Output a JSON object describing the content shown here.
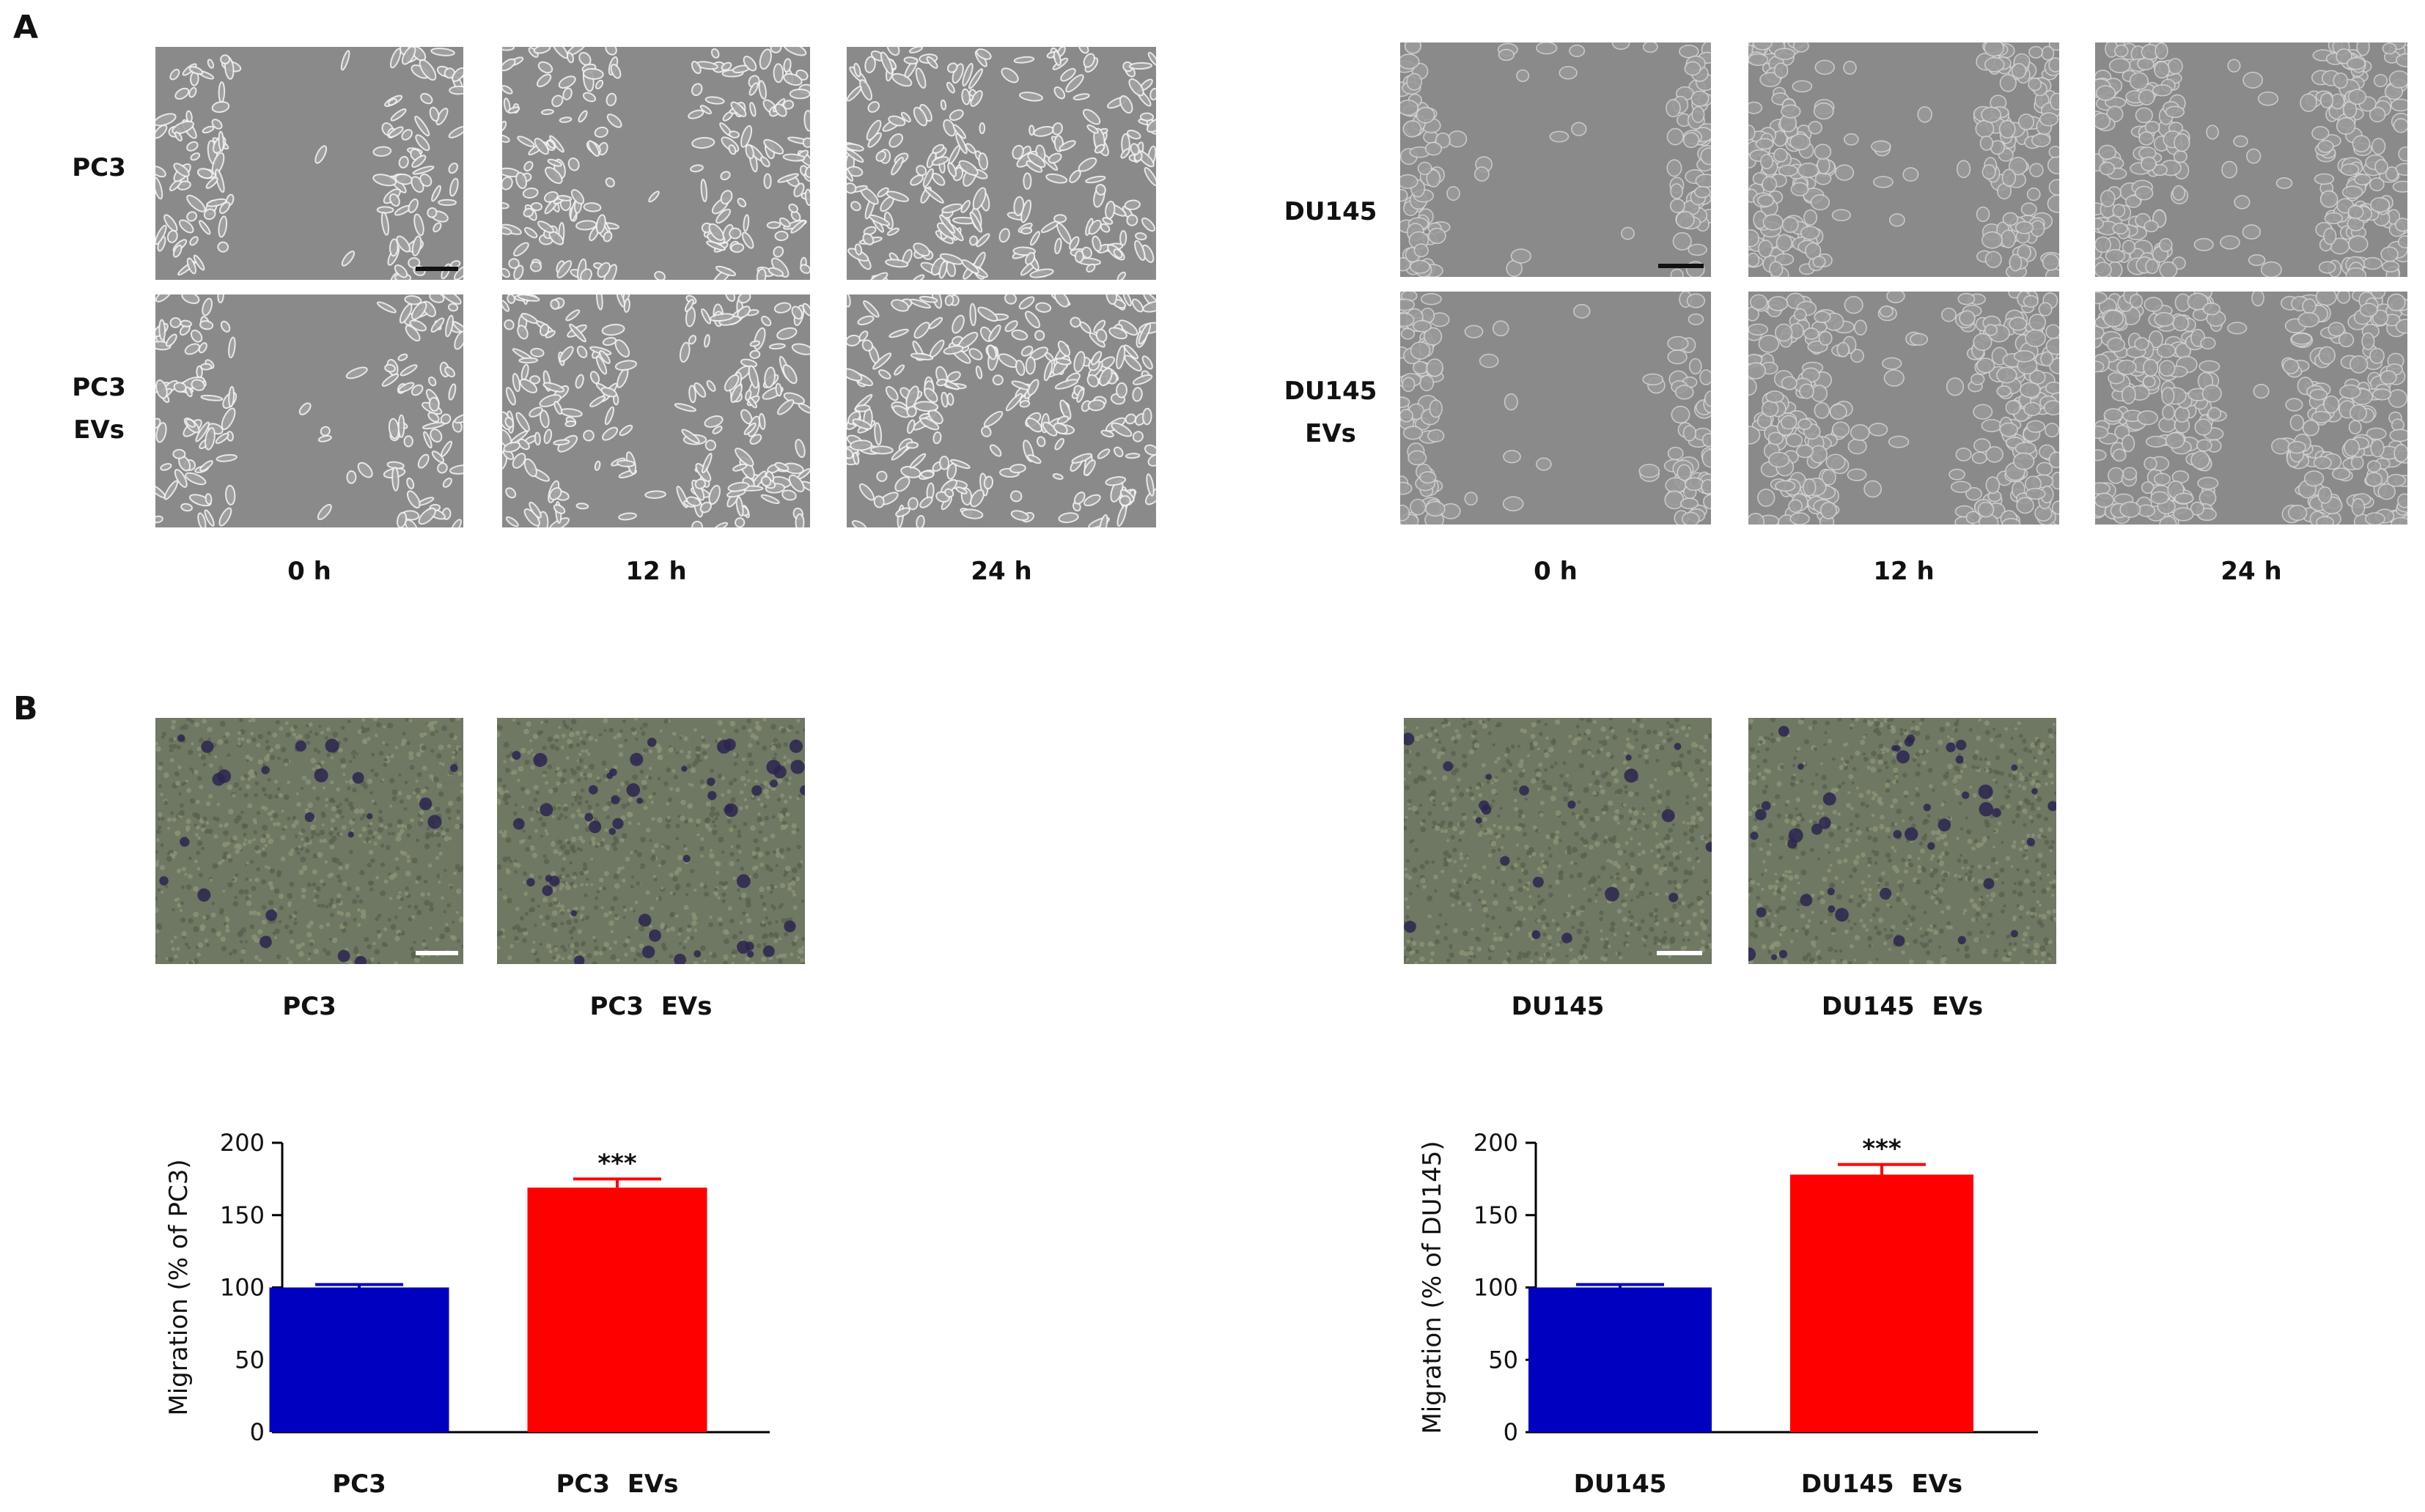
{
  "figure": {
    "panel_a_label": "A",
    "panel_b_label": "B",
    "wound_healing": {
      "pc3": {
        "row_labels": [
          "PC3",
          "PC3\nEVs"
        ],
        "time_labels": [
          "0 h",
          "12 h",
          "24 h"
        ]
      },
      "du145": {
        "row_labels": [
          "DU145",
          "DU145\nEVs"
        ],
        "time_labels": [
          "0 h",
          "12 h",
          "24 h"
        ]
      }
    },
    "transwell": {
      "pc3_labels": [
        "PC3",
        "PC3  EVs"
      ],
      "du145_labels": [
        "DU145",
        "DU145  EVs"
      ]
    }
  },
  "chart_data": [
    {
      "type": "bar",
      "title": "",
      "xlabel": "",
      "ylabel": "Migration  (% of PC3)",
      "categories": [
        "PC3",
        "PC3  EVs"
      ],
      "values": [
        100,
        169
      ],
      "errors": [
        2,
        6
      ],
      "significance": [
        "",
        "***"
      ],
      "colors": [
        "#0000c0",
        "#ff0000"
      ],
      "ylim": [
        0,
        200
      ],
      "yticks": [
        0,
        50,
        100,
        150,
        200
      ]
    },
    {
      "type": "bar",
      "title": "",
      "xlabel": "",
      "ylabel": "Migration  (% of DU145)",
      "categories": [
        "DU145",
        "DU145  EVs"
      ],
      "values": [
        100,
        178
      ],
      "errors": [
        2,
        7
      ],
      "significance": [
        "",
        "***"
      ],
      "colors": [
        "#0000c0",
        "#ff0000"
      ],
      "ylim": [
        0,
        200
      ],
      "yticks": [
        0,
        50,
        100,
        150,
        200
      ]
    }
  ]
}
